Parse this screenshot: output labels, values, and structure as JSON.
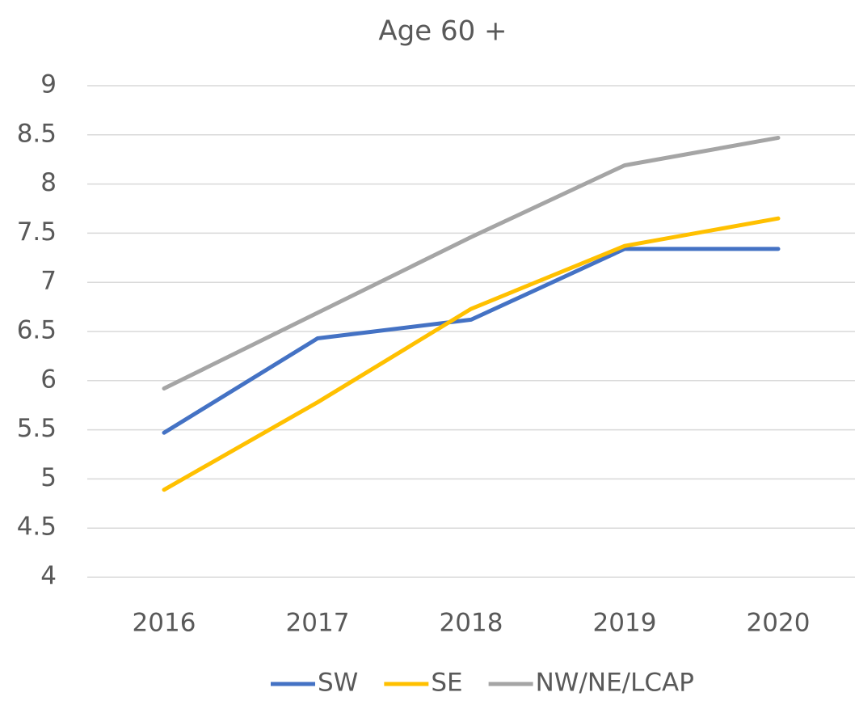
{
  "chart_data": {
    "type": "line",
    "title": "Age 60 +",
    "categories": [
      "2016",
      "2017",
      "2018",
      "2019",
      "2020"
    ],
    "series": [
      {
        "name": "SW",
        "color": "#4472c4",
        "values": [
          5.47,
          6.43,
          6.62,
          7.34,
          7.34
        ]
      },
      {
        "name": "SE",
        "color": "#ffc000",
        "values": [
          4.89,
          5.78,
          6.73,
          7.37,
          7.65
        ]
      },
      {
        "name": "NW/NE/LCAP",
        "color": "#a5a5a5",
        "values": [
          5.92,
          6.69,
          7.46,
          8.19,
          8.47
        ]
      }
    ],
    "ylim": [
      4,
      9
    ],
    "yticks": [
      4,
      4.5,
      5,
      5.5,
      6,
      6.5,
      7,
      7.5,
      8,
      8.5,
      9
    ],
    "grid": true,
    "legend": "bottom"
  }
}
